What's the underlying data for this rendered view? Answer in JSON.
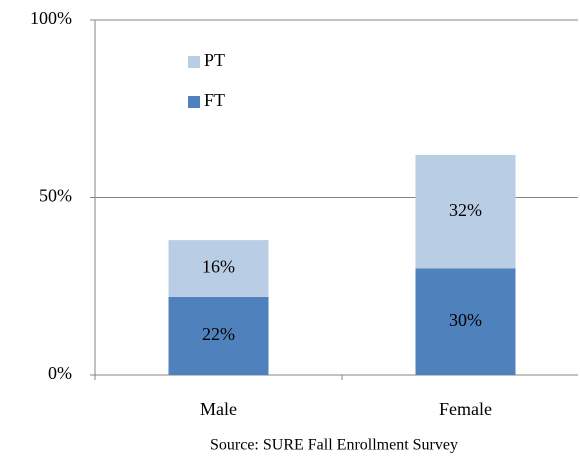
{
  "chart_data": {
    "type": "stacked_bar",
    "categories": [
      "Male",
      "Female"
    ],
    "series": [
      {
        "name": "FT",
        "color": "#4f81bd",
        "values": [
          22,
          30
        ],
        "value_labels": [
          "22%",
          "30%"
        ]
      },
      {
        "name": "PT",
        "color": "#b9cde5",
        "values": [
          16,
          32
        ],
        "value_labels": [
          "16%",
          "32%"
        ]
      }
    ],
    "ylim": [
      0,
      100
    ],
    "yticks": [
      {
        "value": 0,
        "label": "0%"
      },
      {
        "value": 50,
        "label": "50%"
      },
      {
        "value": 100,
        "label": "100%"
      }
    ],
    "grid": true,
    "legend": "upper left",
    "caption": "Source: SURE Fall Enrollment Survey"
  }
}
